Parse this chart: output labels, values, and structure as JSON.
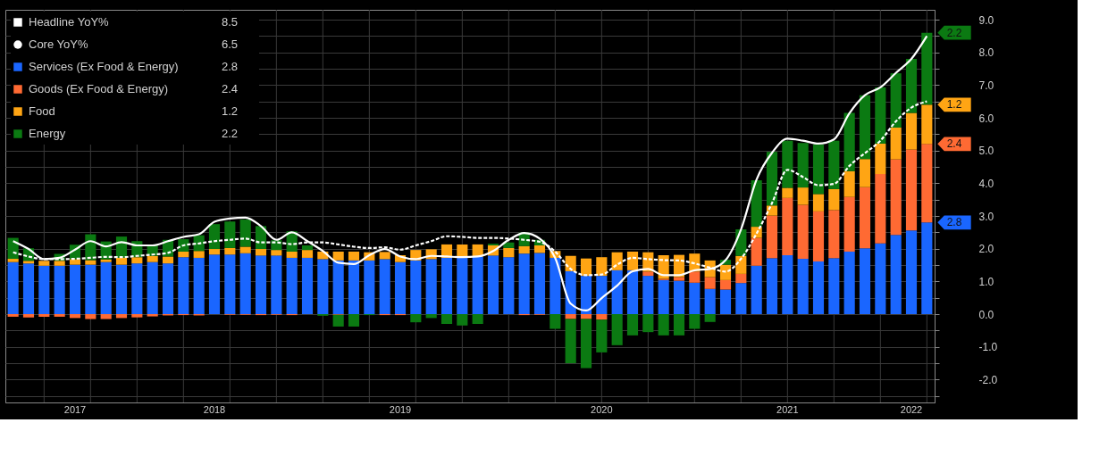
{
  "chart_data": {
    "type": "bar",
    "stacked": true,
    "grid": true,
    "legend": "top left",
    "annotations": [
      "8.5",
      "6.5",
      "2.8",
      "2.4",
      "1.2",
      "2.2"
    ],
    "categories": [
      null,
      null,
      null,
      null,
      "2017",
      null,
      null,
      null,
      null,
      null,
      null,
      null,
      null,
      "2018",
      null,
      null,
      null,
      null,
      null,
      null,
      null,
      null,
      null,
      null,
      null,
      "2019",
      null,
      null,
      null,
      null,
      null,
      null,
      null,
      null,
      null,
      null,
      null,
      null,
      "2020",
      null,
      null,
      null,
      null,
      null,
      null,
      null,
      null,
      null,
      null,
      null,
      "2021",
      null,
      null,
      null,
      null,
      null,
      null,
      null,
      "2022",
      null
    ],
    "series": [
      {
        "name": "Headline YoY%",
        "type": "line",
        "line_style": "solid",
        "color": "#ffffff",
        "values": [
          2.23,
          1.99,
          1.68,
          1.72,
          1.97,
          2.23,
          2.07,
          2.2,
          2.1,
          2.1,
          2.23,
          2.36,
          2.44,
          2.82,
          2.92,
          2.95,
          2.69,
          2.27,
          2.5,
          2.23,
          1.93,
          1.57,
          1.53,
          1.8,
          1.99,
          1.76,
          1.68,
          1.78,
          1.76,
          1.74,
          1.76,
          1.93,
          2.27,
          2.48,
          2.31,
          1.72,
          0.32,
          0.11,
          0.49,
          0.87,
          1.31,
          1.38,
          1.19,
          1.19,
          1.34,
          1.38,
          1.65,
          2.59,
          4.11,
          4.93,
          5.36,
          5.3,
          5.21,
          5.34,
          6.14,
          6.69,
          6.93,
          7.37,
          7.8,
          8.5
        ]
      },
      {
        "name": "Core YoY%",
        "type": "line",
        "line_style": "dashed",
        "color": "#ffffff",
        "values": [
          1.89,
          1.76,
          1.68,
          1.68,
          1.69,
          1.72,
          1.75,
          1.74,
          1.78,
          1.82,
          1.87,
          2.1,
          2.16,
          2.23,
          2.27,
          2.31,
          2.19,
          2.19,
          2.14,
          2.19,
          2.19,
          2.13,
          2.06,
          2.02,
          2.04,
          1.97,
          2.1,
          2.23,
          2.38,
          2.36,
          2.33,
          2.33,
          2.31,
          2.27,
          2.21,
          1.91,
          1.38,
          1.19,
          1.21,
          1.51,
          1.72,
          1.68,
          1.65,
          1.64,
          1.55,
          1.42,
          1.3,
          1.69,
          2.46,
          3.39,
          4.41,
          4.19,
          3.94,
          3.98,
          4.53,
          4.92,
          5.3,
          5.89,
          6.31,
          6.5
        ]
      },
      {
        "name": "Services (Ex Food & Energy)",
        "type": "bar",
        "color": "#1a66ff",
        "value_labels": [
          null,
          null,
          null,
          null,
          null,
          null,
          null,
          null,
          null,
          null,
          null,
          null,
          null,
          null,
          null,
          null,
          null,
          null,
          null,
          null,
          null,
          null,
          null,
          null,
          null,
          null,
          null,
          null,
          null,
          null,
          null,
          null,
          null,
          null,
          null,
          null,
          null,
          null,
          null,
          null,
          null,
          null,
          null,
          null,
          null,
          null,
          null,
          null,
          null,
          null,
          null,
          null,
          null,
          null,
          null,
          null,
          null,
          null,
          null,
          "2.8"
        ],
        "values": [
          1.59,
          1.55,
          1.48,
          1.48,
          1.51,
          1.51,
          1.59,
          1.51,
          1.55,
          1.59,
          1.55,
          1.74,
          1.72,
          1.82,
          1.82,
          1.86,
          1.79,
          1.79,
          1.72,
          1.72,
          1.68,
          1.64,
          1.64,
          1.64,
          1.68,
          1.59,
          1.64,
          1.68,
          1.72,
          1.72,
          1.76,
          1.79,
          1.74,
          1.85,
          1.87,
          1.72,
          1.31,
          1.17,
          1.17,
          1.34,
          1.34,
          1.17,
          1.04,
          1.02,
          0.96,
          0.77,
          0.75,
          0.95,
          1.48,
          1.71,
          1.8,
          1.69,
          1.61,
          1.71,
          1.91,
          2.01,
          2.16,
          2.42,
          2.56,
          2.8
        ]
      },
      {
        "name": "Goods (Ex Food & Energy)",
        "type": "bar",
        "color": "#ff6a33",
        "value_labels": [
          null,
          null,
          null,
          null,
          null,
          null,
          null,
          null,
          null,
          null,
          null,
          null,
          null,
          null,
          null,
          null,
          null,
          null,
          null,
          null,
          null,
          null,
          null,
          null,
          null,
          null,
          null,
          null,
          null,
          null,
          null,
          null,
          null,
          null,
          null,
          null,
          null,
          null,
          null,
          null,
          null,
          null,
          null,
          null,
          null,
          null,
          null,
          null,
          null,
          null,
          null,
          null,
          null,
          null,
          null,
          null,
          null,
          null,
          null,
          "2.4"
        ],
        "values": [
          -0.08,
          -0.1,
          -0.08,
          -0.08,
          -0.12,
          -0.15,
          -0.15,
          -0.12,
          -0.1,
          -0.07,
          -0.04,
          -0.03,
          -0.04,
          null,
          -0.02,
          -0.02,
          -0.03,
          -0.02,
          -0.03,
          0,
          0,
          -0.02,
          0,
          0,
          -0.03,
          -0.03,
          0,
          0,
          0,
          0,
          0,
          0,
          0,
          -0.03,
          -0.02,
          0,
          -0.15,
          -0.15,
          -0.17,
          0,
          0,
          0.13,
          0.04,
          0.11,
          0.34,
          0.36,
          0.29,
          0.28,
          0.85,
          1.3,
          1.75,
          1.65,
          1.53,
          1.47,
          1.67,
          1.87,
          2.12,
          2.31,
          2.47,
          2.4
        ]
      },
      {
        "name": "Food",
        "type": "bar",
        "color": "#ffa514",
        "value_labels": [
          null,
          null,
          null,
          null,
          null,
          null,
          null,
          null,
          null,
          null,
          null,
          null,
          null,
          null,
          null,
          null,
          null,
          null,
          null,
          null,
          null,
          null,
          null,
          null,
          null,
          null,
          null,
          null,
          null,
          null,
          null,
          null,
          null,
          null,
          null,
          null,
          null,
          null,
          null,
          null,
          null,
          null,
          null,
          null,
          null,
          null,
          null,
          null,
          null,
          null,
          null,
          null,
          null,
          null,
          null,
          null,
          null,
          null,
          null,
          "1.2"
        ],
        "values": [
          0.1,
          0.08,
          0.15,
          0.15,
          0.17,
          0.14,
          0.08,
          0.21,
          0.19,
          0.19,
          0.21,
          0.17,
          0.21,
          0.17,
          0.2,
          0.2,
          0.2,
          0.17,
          0.19,
          0.24,
          0.23,
          0.27,
          0.27,
          0.25,
          0.22,
          0.21,
          0.32,
          0.3,
          0.41,
          0.41,
          0.37,
          0.31,
          0.28,
          0.23,
          0.23,
          0.21,
          0.47,
          0.53,
          0.57,
          0.55,
          0.57,
          0.59,
          0.72,
          0.68,
          0.55,
          0.51,
          0.47,
          0.55,
          0.34,
          0.31,
          0.31,
          0.53,
          0.53,
          0.64,
          0.79,
          0.86,
          0.93,
          0.97,
          1.12,
          1.2
        ]
      },
      {
        "name": "Energy",
        "type": "bar",
        "color": "#0b7a12",
        "value_labels": [
          null,
          null,
          null,
          null,
          null,
          null,
          null,
          null,
          null,
          null,
          null,
          null,
          null,
          null,
          null,
          null,
          null,
          null,
          null,
          null,
          null,
          null,
          null,
          null,
          null,
          null,
          null,
          null,
          null,
          null,
          null,
          null,
          null,
          null,
          null,
          null,
          null,
          null,
          null,
          null,
          null,
          null,
          null,
          null,
          null,
          null,
          null,
          null,
          null,
          null,
          null,
          null,
          null,
          null,
          null,
          null,
          null,
          null,
          null,
          "2.2"
        ],
        "values": [
          0.64,
          0.38,
          null,
          0.21,
          0.44,
          0.79,
          0.55,
          0.65,
          0.49,
          0.32,
          0.51,
          0.38,
          0.48,
          0.76,
          0.81,
          0.83,
          0.7,
          0.3,
          0.62,
          0.14,
          -0.05,
          -0.36,
          -0.38,
          -0.03,
          0,
          0,
          -0.25,
          -0.12,
          -0.3,
          -0.35,
          -0.3,
          0.05,
          0.17,
          0.41,
          0.17,
          -0.45,
          -1.35,
          -1.5,
          -1.0,
          -0.95,
          -0.65,
          -0.55,
          -0.65,
          -0.65,
          -0.45,
          -0.24,
          0.15,
          0.81,
          1.42,
          1.64,
          1.44,
          1.36,
          1.51,
          1.48,
          1.78,
          1.95,
          1.72,
          1.66,
          1.65,
          2.2
        ]
      }
    ],
    "ylim": [
      -2.7,
      9.3
    ],
    "yticks": [
      {
        "value": -2.5,
        "label": null
      },
      {
        "value": -2,
        "label": "-2.0"
      },
      {
        "value": -1.5,
        "label": null
      },
      {
        "value": -1,
        "label": "-1.0"
      },
      {
        "value": -0.5,
        "label": null
      },
      {
        "value": 0,
        "label": "0.0"
      },
      {
        "value": 0.5,
        "label": null
      },
      {
        "value": 1,
        "label": "1.0"
      },
      {
        "value": 1.5,
        "label": null
      },
      {
        "value": 2,
        "label": "2.0"
      },
      {
        "value": 2.5,
        "label": null
      },
      {
        "value": 3,
        "label": "3.0"
      },
      {
        "value": 3.5,
        "label": null
      },
      {
        "value": 4,
        "label": "4.0"
      },
      {
        "value": 4.5,
        "label": null
      },
      {
        "value": 5,
        "label": "5.0"
      },
      {
        "value": 5.5,
        "label": null
      },
      {
        "value": 6,
        "label": "6.0"
      },
      {
        "value": 6.5,
        "label": null
      },
      {
        "value": 7,
        "label": "7.0"
      },
      {
        "value": 7.5,
        "label": null
      },
      {
        "value": 8,
        "label": "8.0"
      },
      {
        "value": 8.5,
        "label": null
      },
      {
        "value": 9,
        "label": "9.0"
      }
    ]
  }
}
